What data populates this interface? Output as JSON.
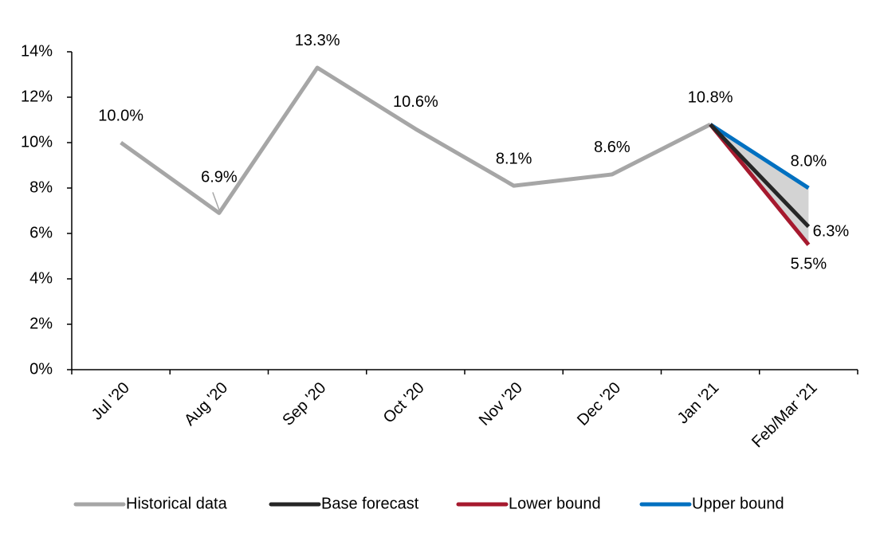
{
  "chart_data": {
    "type": "line",
    "categories": [
      "Jul '20",
      "Aug '20",
      "Sep '20",
      "Oct '20",
      "Nov '20",
      "Dec '20",
      "Jan '21",
      "Feb/Mar '21"
    ],
    "series": [
      {
        "name": "Historical data",
        "color": "#a6a6a6",
        "values": [
          10.0,
          6.9,
          13.3,
          10.6,
          8.1,
          8.6,
          10.8,
          null
        ],
        "value_labels": [
          "10.0%",
          "6.9%",
          "13.3%",
          "10.6%",
          "8.1%",
          "8.6%",
          "10.8%",
          null
        ]
      },
      {
        "name": "Base forecast",
        "color": "#262626",
        "values": [
          null,
          null,
          null,
          null,
          null,
          null,
          10.8,
          6.3
        ],
        "value_labels": [
          null,
          null,
          null,
          null,
          null,
          null,
          null,
          "6.3%"
        ]
      },
      {
        "name": "Lower bound",
        "color": "#a6192e",
        "values": [
          null,
          null,
          null,
          null,
          null,
          null,
          10.8,
          5.5
        ],
        "value_labels": [
          null,
          null,
          null,
          null,
          null,
          null,
          null,
          "5.5%"
        ]
      },
      {
        "name": "Upper bound",
        "color": "#0070c0",
        "values": [
          null,
          null,
          null,
          null,
          null,
          null,
          10.8,
          8.0
        ],
        "value_labels": [
          null,
          null,
          null,
          null,
          null,
          null,
          null,
          "8.0%"
        ]
      }
    ],
    "ylim": [
      0,
      14
    ],
    "yticks": [
      {
        "value": 0,
        "label": "0%"
      },
      {
        "value": 2,
        "label": "2%"
      },
      {
        "value": 4,
        "label": "4%"
      },
      {
        "value": 6,
        "label": "6%"
      },
      {
        "value": 8,
        "label": "8%"
      },
      {
        "value": 10,
        "label": "10%"
      },
      {
        "value": 12,
        "label": "12%"
      },
      {
        "value": 14,
        "label": "14%"
      }
    ],
    "grid": false,
    "legend": "bottom"
  }
}
